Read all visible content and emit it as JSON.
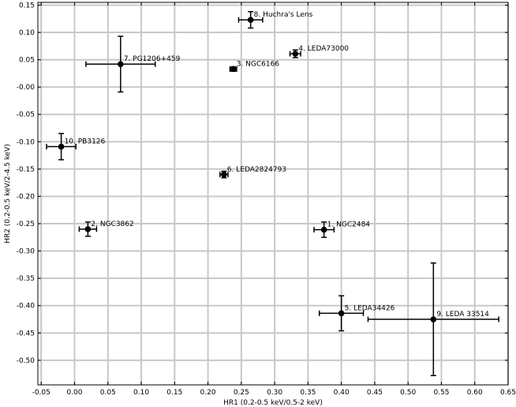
{
  "chart_data": {
    "type": "scatter",
    "title": "",
    "xlabel": "HR1 (0.2-0.5 keV/0.5-2 keV)",
    "ylabel": "HR2 (0.2-0.5 keV/2-4.5 keV)",
    "xlim": [
      -0.055,
      0.65
    ],
    "ylim": [
      -0.545,
      0.155
    ],
    "grid": true,
    "x_ticks": [
      "-0.05",
      "0.00",
      "0.05",
      "0.10",
      "0.15",
      "0.20",
      "0.25",
      "0.30",
      "0.35",
      "0.40",
      "0.45",
      "0.50",
      "0.55",
      "0.60",
      "0.65"
    ],
    "y_ticks": [
      "0.15",
      "0.10",
      "0.05",
      "-0.00",
      "-0.05",
      "-0.10",
      "-0.15",
      "-0.20",
      "-0.25",
      "-0.30",
      "-0.35",
      "-0.40",
      "-0.45",
      "-0.50"
    ],
    "marker_color": "#000000",
    "points": [
      {
        "label": "1. NGC2484",
        "x": 0.374,
        "y": -0.261,
        "xerr": 0.015,
        "yerr": 0.014
      },
      {
        "label": "2. NGC3862",
        "x": 0.02,
        "y": -0.26,
        "xerr": 0.013,
        "yerr": 0.013
      },
      {
        "label": "3. NGC6166",
        "x": 0.238,
        "y": 0.033,
        "xerr": 0.005,
        "yerr": 0.004
      },
      {
        "label": "4. LEDA73000",
        "x": 0.331,
        "y": 0.061,
        "xerr": 0.008,
        "yerr": 0.007
      },
      {
        "label": "5. LEDA34426",
        "x": 0.4,
        "y": -0.414,
        "xerr": 0.033,
        "yerr": 0.032
      },
      {
        "label": "6. LEDA2824793",
        "x": 0.224,
        "y": -0.16,
        "xerr": 0.006,
        "yerr": 0.006
      },
      {
        "label": "7. PG1206+459",
        "x": 0.069,
        "y": 0.042,
        "xerr": 0.052,
        "yerr": 0.051
      },
      {
        "label": "8. Huchra's Lens",
        "x": 0.264,
        "y": 0.123,
        "xerr": 0.018,
        "yerr": 0.015
      },
      {
        "label": "9. LEDA 33514",
        "x": 0.538,
        "y": -0.425,
        "xerr": 0.098,
        "yerr": 0.103
      },
      {
        "label": "10. PB3126",
        "x": -0.02,
        "y": -0.109,
        "xerr": 0.022,
        "yerr": 0.024
      }
    ]
  }
}
